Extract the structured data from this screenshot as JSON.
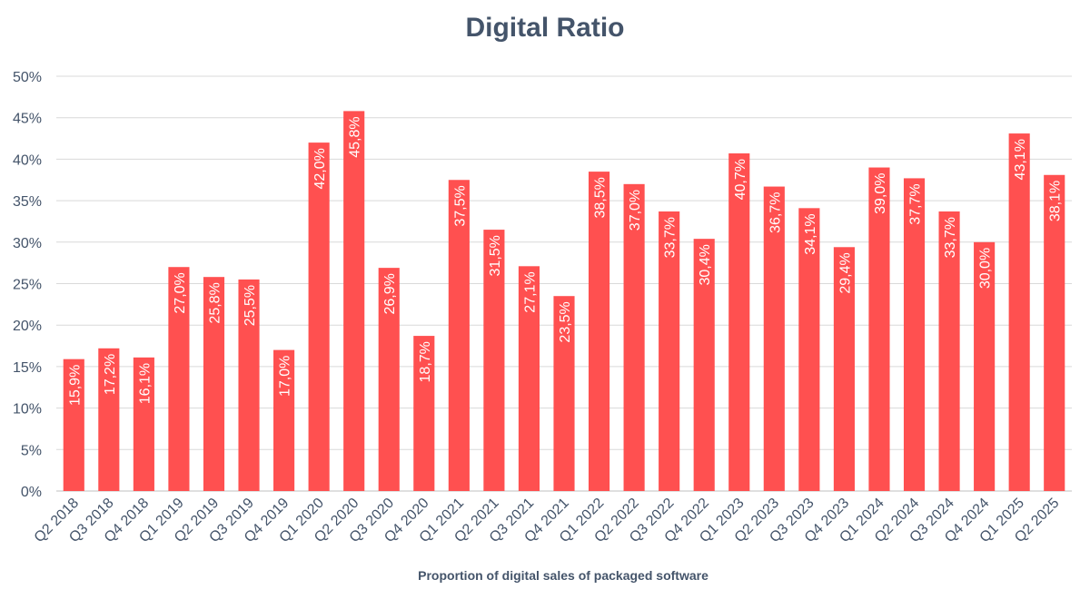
{
  "chart_data": {
    "type": "bar",
    "title": "Digital Ratio",
    "xlabel": "Proportion of digital sales of packaged software",
    "ylabel": "",
    "ylim": [
      0,
      50
    ],
    "yticks": [
      "0%",
      "5%",
      "10%",
      "15%",
      "20%",
      "25%",
      "30%",
      "35%",
      "40%",
      "45%",
      "50%"
    ],
    "grid": true,
    "legend": "none",
    "bar_color": "#ff5050",
    "categories": [
      "Q2 2018",
      "Q3 2018",
      "Q4 2018",
      "Q1 2019",
      "Q2 2019",
      "Q3 2019",
      "Q4 2019",
      "Q1 2020",
      "Q2 2020",
      "Q3 2020",
      "Q4 2020",
      "Q1 2021",
      "Q2 2021",
      "Q3 2021",
      "Q4 2021",
      "Q1 2022",
      "Q2 2022",
      "Q3 2022",
      "Q4 2022",
      "Q1 2023",
      "Q2 2023",
      "Q3 2023",
      "Q4 2023",
      "Q1 2024",
      "Q2 2024",
      "Q3 2024",
      "Q4 2024",
      "Q1 2025",
      "Q2 2025"
    ],
    "values": [
      15.9,
      17.2,
      16.1,
      27.0,
      25.8,
      25.5,
      17.0,
      42.0,
      45.8,
      26.9,
      18.7,
      37.5,
      31.5,
      27.1,
      23.5,
      38.5,
      37.0,
      33.7,
      30.4,
      40.7,
      36.7,
      34.1,
      29.4,
      39.0,
      37.7,
      33.7,
      30.0,
      43.1,
      38.1
    ],
    "data_labels": [
      "15,9%",
      "17,2%",
      "16,1%",
      "27,0%",
      "25,8%",
      "25,5%",
      "17,0%",
      "42,0%",
      "45,8%",
      "26,9%",
      "18,7%",
      "37,5%",
      "31,5%",
      "27,1%",
      "23,5%",
      "38,5%",
      "37,0%",
      "33,7%",
      "30,4%",
      "40,7%",
      "36,7%",
      "34,1%",
      "29,4%",
      "39,0%",
      "37,7%",
      "33,7%",
      "30,0%",
      "43,1%",
      "38,1%"
    ]
  }
}
